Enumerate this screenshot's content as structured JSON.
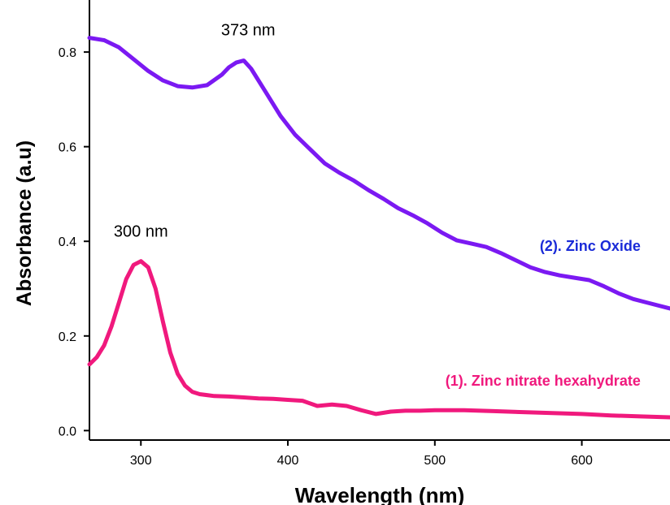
{
  "chart_data": {
    "type": "line",
    "title": "",
    "xlabel": "Wavelength (nm)",
    "ylabel": "Absorbance (a.u)",
    "xlim": [
      265,
      660
    ],
    "ylim": [
      -0.02,
      0.91
    ],
    "x_ticks": [
      300,
      400,
      500,
      600
    ],
    "y_ticks": [
      0.0,
      0.2,
      0.4,
      0.6,
      0.8
    ],
    "x_tick_labels": [
      "300",
      "400",
      "500",
      "600"
    ],
    "y_tick_labels": [
      "0.0",
      "0.2",
      "0.4",
      "0.6",
      "0.8"
    ],
    "grid": false,
    "annotations": [
      {
        "text": "373 nm",
        "x": 373,
        "y": 0.835
      },
      {
        "text": "300 nm",
        "x": 300,
        "y": 0.41
      }
    ],
    "series": [
      {
        "name": "(2). Zinc Oxide",
        "color": "#7B19F2",
        "label_at": {
          "x": 640,
          "y": 0.38
        },
        "x": [
          265,
          275,
          285,
          295,
          305,
          315,
          325,
          335,
          345,
          355,
          360,
          365,
          370,
          375,
          385,
          395,
          405,
          415,
          425,
          435,
          445,
          455,
          465,
          475,
          485,
          495,
          505,
          515,
          525,
          535,
          545,
          555,
          565,
          575,
          585,
          595,
          605,
          615,
          625,
          635,
          645,
          660
        ],
        "values": [
          0.83,
          0.825,
          0.81,
          0.785,
          0.76,
          0.74,
          0.728,
          0.725,
          0.73,
          0.752,
          0.768,
          0.778,
          0.782,
          0.765,
          0.715,
          0.665,
          0.625,
          0.595,
          0.565,
          0.545,
          0.528,
          0.508,
          0.49,
          0.47,
          0.455,
          0.438,
          0.418,
          0.402,
          0.395,
          0.388,
          0.375,
          0.36,
          0.345,
          0.335,
          0.328,
          0.323,
          0.318,
          0.305,
          0.29,
          0.278,
          0.27,
          0.258
        ]
      },
      {
        "name": "(1). Zinc nitrate hexahydrate",
        "color": "#F0197D",
        "label_at": {
          "x": 640,
          "y": 0.095
        },
        "x": [
          265,
          270,
          275,
          280,
          285,
          290,
          295,
          300,
          305,
          310,
          315,
          320,
          325,
          330,
          335,
          340,
          350,
          360,
          370,
          380,
          390,
          400,
          410,
          420,
          430,
          440,
          450,
          460,
          470,
          480,
          490,
          500,
          520,
          540,
          560,
          580,
          600,
          620,
          640,
          660
        ],
        "values": [
          0.14,
          0.155,
          0.18,
          0.22,
          0.27,
          0.32,
          0.35,
          0.358,
          0.345,
          0.3,
          0.23,
          0.165,
          0.12,
          0.095,
          0.082,
          0.077,
          0.073,
          0.072,
          0.07,
          0.068,
          0.067,
          0.065,
          0.063,
          0.052,
          0.055,
          0.052,
          0.043,
          0.035,
          0.04,
          0.042,
          0.042,
          0.043,
          0.043,
          0.041,
          0.039,
          0.037,
          0.035,
          0.032,
          0.03,
          0.028
        ]
      }
    ]
  }
}
